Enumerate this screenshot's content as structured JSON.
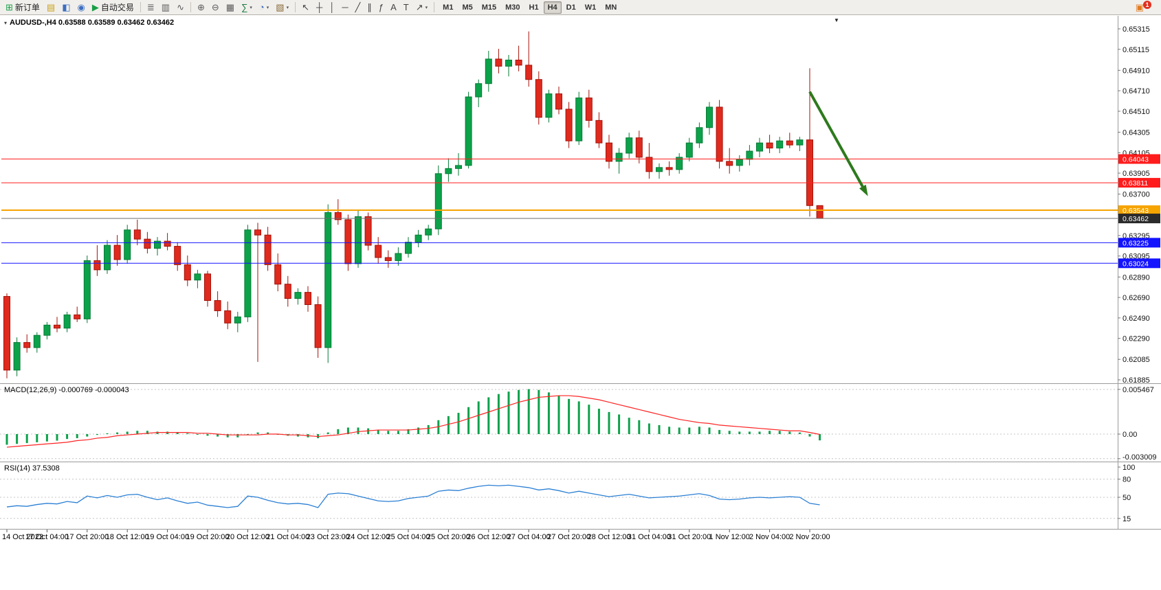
{
  "toolbar": {
    "buttons": [
      {
        "name": "new-order-button",
        "glyph": "⊞",
        "glyph_color": "#1a9e46",
        "label": "新订单"
      },
      {
        "name": "chart-profiles-button",
        "glyph": "▤",
        "glyph_color": "#c9a21a"
      },
      {
        "name": "data-window-button",
        "glyph": "◧",
        "glyph_color": "#3d6fc0"
      },
      {
        "name": "market-watch-button",
        "glyph": "◉",
        "glyph_color": "#3d6fc0"
      },
      {
        "name": "autotrading-button",
        "glyph": "▶",
        "glyph_color": "#1a9e46",
        "label": "自动交易"
      },
      {
        "sep": true
      },
      {
        "name": "bar-chart-button",
        "glyph": "≣",
        "glyph_color": "#5a5a5a"
      },
      {
        "name": "candlestick-chart-button",
        "glyph": "▥",
        "glyph_color": "#5a5a5a"
      },
      {
        "name": "line-chart-button",
        "glyph": "∿",
        "glyph_color": "#5a5a5a"
      },
      {
        "sep": true
      },
      {
        "name": "zoom-in-button",
        "glyph": "⊕",
        "glyph_color": "#5a5a5a"
      },
      {
        "name": "zoom-out-button",
        "glyph": "⊖",
        "glyph_color": "#5a5a5a"
      },
      {
        "name": "tile-windows-button",
        "glyph": "▦",
        "glyph_color": "#5a5a5a"
      },
      {
        "name": "indicators-button",
        "glyph": "∑",
        "glyph_color": "#1a7a3a",
        "dropdown": true
      },
      {
        "name": "periods-button",
        "glyph": "◔",
        "glyph_color": "#3d6fc0",
        "dropdown": true
      },
      {
        "name": "templates-button",
        "glyph": "▧",
        "glyph_color": "#8a6d3b",
        "dropdown": true
      },
      {
        "sep": true
      },
      {
        "name": "cursor-button",
        "glyph": "↖",
        "glyph_color": "#444444"
      },
      {
        "name": "crosshair-button",
        "glyph": "┼",
        "glyph_color": "#444444"
      },
      {
        "name": "vertical-line-button",
        "glyph": "│",
        "glyph_color": "#444444"
      },
      {
        "name": "horizontal-line-button",
        "glyph": "─",
        "glyph_color": "#444444"
      },
      {
        "name": "trendline-button",
        "glyph": "╱",
        "glyph_color": "#444444"
      },
      {
        "name": "channel-button",
        "glyph": "∥",
        "glyph_color": "#444444"
      },
      {
        "name": "fibonacci-button",
        "glyph": "ƒ",
        "glyph_color": "#444444"
      },
      {
        "name": "text-button",
        "glyph": "A",
        "glyph_color": "#444444"
      },
      {
        "name": "text-label-button",
        "glyph": "T",
        "glyph_color": "#444444"
      },
      {
        "name": "arrows-button",
        "glyph": "↗",
        "glyph_color": "#444444",
        "dropdown": true
      },
      {
        "sep": true
      }
    ],
    "timeframes": [
      "M1",
      "M5",
      "M15",
      "M30",
      "H1",
      "H4",
      "D1",
      "W1",
      "MN"
    ],
    "active_timeframe": "H4",
    "notification_glyph": "▣",
    "notification_badge": "1"
  },
  "chart": {
    "title": "AUDUSD-,H4 0.63588 0.63589 0.63462 0.63462",
    "dropdown_glyph": "▾",
    "shift_marker": "▼"
  },
  "indicators": {
    "macd_label": "MACD(12,26,9) -0.000769 -0.000043",
    "rsi_label": "RSI(14) 37.5308"
  },
  "chart_data": {
    "type": "candlestick",
    "symbol": "AUDUSD-",
    "timeframe": "H4",
    "current_ohlc": {
      "open": "0.63588",
      "high": "0.63589",
      "low": "0.63462",
      "close": "0.63462"
    },
    "colors": {
      "bull": "#0ca24a",
      "bull_border": "#067a36",
      "bear": "#e02a1e",
      "bear_border": "#a31108",
      "background": "#ffffff",
      "axis_text": "#111111"
    },
    "price_axis": {
      "ticks": [
        "0.65315",
        "0.65115",
        "0.64910",
        "0.64710",
        "0.64510",
        "0.64305",
        "0.64105",
        "0.63905",
        "0.63700",
        "0.63500",
        "0.63295",
        "0.63095",
        "0.62890",
        "0.62690",
        "0.62490",
        "0.62290",
        "0.62085",
        "0.61885"
      ]
    },
    "time_axis": {
      "labels": [
        "14 Oct 2022",
        "17 Oct 04:00",
        "17 Oct 20:00",
        "18 Oct 12:00",
        "19 Oct 04:00",
        "19 Oct 20:00",
        "20 Oct 12:00",
        "21 Oct 04:00",
        "23 Oct 23:00",
        "24 Oct 12:00",
        "25 Oct 04:00",
        "25 Oct 20:00",
        "26 Oct 12:00",
        "27 Oct 04:00",
        "27 Oct 20:00",
        "28 Oct 12:00",
        "31 Oct 04:00",
        "31 Oct 20:00",
        "1 Nov 12:00",
        "2 Nov 04:00",
        "2 Nov 20:00"
      ]
    },
    "hlines": [
      {
        "price": 0.64043,
        "label": "0.64043",
        "color": "#ff1c1c",
        "width": 1
      },
      {
        "price": 0.63811,
        "label": "0.63811",
        "color": "#ff1c1c",
        "width": 1
      },
      {
        "price": 0.63543,
        "label": "0.63543",
        "color": "#f5a400",
        "width": 2
      },
      {
        "price": 0.63462,
        "label": "0.63462",
        "color": "#6e6e6e",
        "width": 1,
        "label_bg": "#2b2b2b"
      },
      {
        "price": 0.63225,
        "label": "0.63225",
        "color": "#1414ff",
        "width": 1
      },
      {
        "price": 0.63024,
        "label": "0.63024",
        "color": "#1414ff",
        "width": 1
      }
    ],
    "arrow": {
      "from": {
        "index": 80.0,
        "price": 0.647
      },
      "to": {
        "index": 85.8,
        "price": 0.6368
      },
      "color": "#2d7a1d"
    },
    "candles": [
      [
        0.627,
        0.6273,
        0.619,
        0.6198
      ],
      [
        0.6198,
        0.623,
        0.6192,
        0.6225
      ],
      [
        0.6225,
        0.6233,
        0.6215,
        0.622
      ],
      [
        0.622,
        0.6235,
        0.6215,
        0.6232
      ],
      [
        0.6232,
        0.6245,
        0.6228,
        0.6242
      ],
      [
        0.6242,
        0.625,
        0.6235,
        0.6239
      ],
      [
        0.6239,
        0.6255,
        0.6235,
        0.6252
      ],
      [
        0.6252,
        0.626,
        0.6245,
        0.6248
      ],
      [
        0.6248,
        0.631,
        0.6244,
        0.6305
      ],
      [
        0.6305,
        0.632,
        0.629,
        0.6296
      ],
      [
        0.6296,
        0.6325,
        0.6292,
        0.632
      ],
      [
        0.632,
        0.633,
        0.63,
        0.6306
      ],
      [
        0.6306,
        0.634,
        0.6302,
        0.6335
      ],
      [
        0.6335,
        0.6345,
        0.632,
        0.6326
      ],
      [
        0.6326,
        0.6333,
        0.6312,
        0.6317
      ],
      [
        0.6317,
        0.6328,
        0.631,
        0.6324
      ],
      [
        0.6324,
        0.6332,
        0.6315,
        0.6319
      ],
      [
        0.6319,
        0.6323,
        0.6295,
        0.6301
      ],
      [
        0.6301,
        0.631,
        0.628,
        0.6286
      ],
      [
        0.6286,
        0.6296,
        0.6278,
        0.6292
      ],
      [
        0.6292,
        0.6295,
        0.626,
        0.6266
      ],
      [
        0.6266,
        0.6275,
        0.625,
        0.6256
      ],
      [
        0.6256,
        0.6265,
        0.6238,
        0.6244
      ],
      [
        0.6244,
        0.6255,
        0.6235,
        0.625
      ],
      [
        0.625,
        0.634,
        0.6245,
        0.6335
      ],
      [
        0.6335,
        0.6342,
        0.6206,
        0.633
      ],
      [
        0.633,
        0.6338,
        0.6295,
        0.6301
      ],
      [
        0.6301,
        0.6312,
        0.6275,
        0.6282
      ],
      [
        0.6282,
        0.629,
        0.626,
        0.6268
      ],
      [
        0.6268,
        0.6278,
        0.6262,
        0.6274
      ],
      [
        0.6274,
        0.628,
        0.6255,
        0.6262
      ],
      [
        0.6262,
        0.627,
        0.621,
        0.622
      ],
      [
        0.622,
        0.636,
        0.6205,
        0.6352
      ],
      [
        0.6352,
        0.6365,
        0.634,
        0.6345
      ],
      [
        0.6345,
        0.635,
        0.6295,
        0.6302
      ],
      [
        0.6302,
        0.6355,
        0.6298,
        0.6348
      ],
      [
        0.6348,
        0.6352,
        0.6315,
        0.632
      ],
      [
        0.632,
        0.6328,
        0.6302,
        0.6308
      ],
      [
        0.6308,
        0.6315,
        0.6298,
        0.6305
      ],
      [
        0.6305,
        0.6318,
        0.63,
        0.6312
      ],
      [
        0.6312,
        0.6328,
        0.6308,
        0.6323
      ],
      [
        0.6323,
        0.6335,
        0.6318,
        0.633
      ],
      [
        0.633,
        0.634,
        0.6325,
        0.6336
      ],
      [
        0.6336,
        0.6398,
        0.633,
        0.639
      ],
      [
        0.639,
        0.6405,
        0.6382,
        0.6395
      ],
      [
        0.6395,
        0.641,
        0.6388,
        0.6398
      ],
      [
        0.6398,
        0.647,
        0.6395,
        0.6465
      ],
      [
        0.6465,
        0.6482,
        0.6455,
        0.6478
      ],
      [
        0.6478,
        0.651,
        0.647,
        0.6502
      ],
      [
        0.6502,
        0.6512,
        0.6488,
        0.6495
      ],
      [
        0.6495,
        0.6506,
        0.6485,
        0.6501
      ],
      [
        0.6501,
        0.6515,
        0.649,
        0.6496
      ],
      [
        0.6496,
        0.6529,
        0.6475,
        0.6482
      ],
      [
        0.6482,
        0.649,
        0.6438,
        0.6445
      ],
      [
        0.6445,
        0.6472,
        0.644,
        0.6468
      ],
      [
        0.6468,
        0.6475,
        0.6448,
        0.6453
      ],
      [
        0.6453,
        0.646,
        0.6415,
        0.6422
      ],
      [
        0.6422,
        0.647,
        0.6418,
        0.6464
      ],
      [
        0.6464,
        0.6472,
        0.6435,
        0.6442
      ],
      [
        0.6442,
        0.645,
        0.6415,
        0.642
      ],
      [
        0.642,
        0.6428,
        0.6395,
        0.6402
      ],
      [
        0.6402,
        0.6415,
        0.639,
        0.641
      ],
      [
        0.641,
        0.643,
        0.6405,
        0.6425
      ],
      [
        0.6425,
        0.6432,
        0.64,
        0.6406
      ],
      [
        0.6406,
        0.642,
        0.6385,
        0.6392
      ],
      [
        0.6392,
        0.64,
        0.6385,
        0.6396
      ],
      [
        0.6396,
        0.6402,
        0.6388,
        0.6394
      ],
      [
        0.6394,
        0.641,
        0.639,
        0.6406
      ],
      [
        0.6406,
        0.6425,
        0.6402,
        0.642
      ],
      [
        0.642,
        0.644,
        0.6415,
        0.6435
      ],
      [
        0.6435,
        0.646,
        0.6428,
        0.6455
      ],
      [
        0.6455,
        0.6462,
        0.6395,
        0.6402
      ],
      [
        0.6402,
        0.6415,
        0.639,
        0.6398
      ],
      [
        0.6398,
        0.6408,
        0.6392,
        0.6404
      ],
      [
        0.6404,
        0.6418,
        0.6398,
        0.6412
      ],
      [
        0.6412,
        0.6425,
        0.6406,
        0.642
      ],
      [
        0.642,
        0.6428,
        0.641,
        0.6415
      ],
      [
        0.6415,
        0.6426,
        0.641,
        0.6422
      ],
      [
        0.6422,
        0.643,
        0.6415,
        0.6418
      ],
      [
        0.6418,
        0.6426,
        0.6412,
        0.6423
      ],
      [
        0.6423,
        0.6493,
        0.6348,
        0.63588
      ],
      [
        0.63588,
        0.63589,
        0.63462,
        0.63462
      ]
    ],
    "macd": {
      "label": "MACD(12,26,9)",
      "value_main": "-0.000769",
      "value_signal": "-0.000043",
      "scale": [
        "0.005467",
        "0.00",
        "-0.003009"
      ],
      "hist_color": "#0ea14b",
      "signal_color": "#ff2222",
      "histogram": [
        -0.0013,
        -0.0012,
        -0.0011,
        -0.001,
        -0.0009,
        -0.0008,
        -0.0006,
        -0.0005,
        -0.0003,
        -0.0001,
        0.0001,
        0.0002,
        0.0003,
        0.0004,
        0.0004,
        0.0003,
        0.0003,
        0.0002,
        0.0001,
        0.0,
        -0.0002,
        -0.0003,
        -0.0004,
        -0.0004,
        -0.0001,
        0.0002,
        0.0002,
        0.0,
        -0.0002,
        -0.0003,
        -0.0004,
        -0.0005,
        0.0002,
        0.0006,
        0.0008,
        0.0008,
        0.0007,
        0.0005,
        0.0004,
        0.0004,
        0.0006,
        0.0008,
        0.0011,
        0.0017,
        0.0022,
        0.0026,
        0.0033,
        0.004,
        0.0045,
        0.0049,
        0.0052,
        0.0054,
        0.0055,
        0.0054,
        0.0051,
        0.0047,
        0.0043,
        0.004,
        0.0036,
        0.0031,
        0.0027,
        0.0024,
        0.002,
        0.0017,
        0.0013,
        0.0011,
        0.0009,
        0.0008,
        0.0008,
        0.0009,
        0.0008,
        0.0005,
        0.0004,
        0.0003,
        0.0003,
        0.0003,
        0.0004,
        0.0004,
        0.0003,
        0.0002,
        -0.0003,
        -0.000769
      ],
      "signal": [
        -0.0016,
        -0.0015,
        -0.0014,
        -0.0013,
        -0.0012,
        -0.0011,
        -0.001,
        -0.0008,
        -0.0007,
        -0.0005,
        -0.0004,
        -0.0002,
        -0.0001,
        0.0,
        0.0001,
        0.0002,
        0.0002,
        0.0002,
        0.0002,
        0.0001,
        0.0001,
        0.0,
        -0.0001,
        -0.0001,
        -0.0001,
        -0.0001,
        0.0,
        0.0,
        -0.0001,
        -0.0001,
        -0.0002,
        -0.0003,
        -0.0002,
        -0.0001,
        0.0001,
        0.0003,
        0.0004,
        0.0005,
        0.0005,
        0.0005,
        0.0005,
        0.0006,
        0.0007,
        0.0009,
        0.0012,
        0.0015,
        0.0019,
        0.0023,
        0.0027,
        0.0031,
        0.0035,
        0.0039,
        0.0042,
        0.0045,
        0.0046,
        0.0047,
        0.0047,
        0.0046,
        0.0044,
        0.0042,
        0.0039,
        0.0036,
        0.0033,
        0.003,
        0.0027,
        0.0024,
        0.0021,
        0.0018,
        0.0016,
        0.0014,
        0.0013,
        0.0011,
        0.001,
        0.0009,
        0.0008,
        0.0007,
        0.0006,
        0.0005,
        0.0004,
        0.0004,
        0.0002,
        -4.3e-05
      ]
    },
    "rsi": {
      "label": "RSI(14)",
      "value": "37.5308",
      "levels": [
        "100",
        "80",
        "50",
        "15"
      ],
      "line_color": "#2a7fd4",
      "values": [
        34,
        36,
        35,
        38,
        40,
        39,
        43,
        41,
        52,
        49,
        53,
        50,
        54,
        55,
        50,
        46,
        49,
        44,
        40,
        42,
        37,
        35,
        33,
        35,
        52,
        50,
        45,
        41,
        39,
        40,
        38,
        33,
        55,
        57,
        56,
        52,
        48,
        44,
        43,
        44,
        48,
        50,
        52,
        60,
        62,
        61,
        65,
        68,
        70,
        69,
        70,
        68,
        66,
        62,
        64,
        61,
        57,
        60,
        57,
        54,
        51,
        53,
        55,
        52,
        49,
        50,
        51,
        52,
        54,
        56,
        53,
        47,
        46,
        47,
        49,
        50,
        49,
        50,
        51,
        50,
        40,
        37.5308
      ]
    }
  }
}
